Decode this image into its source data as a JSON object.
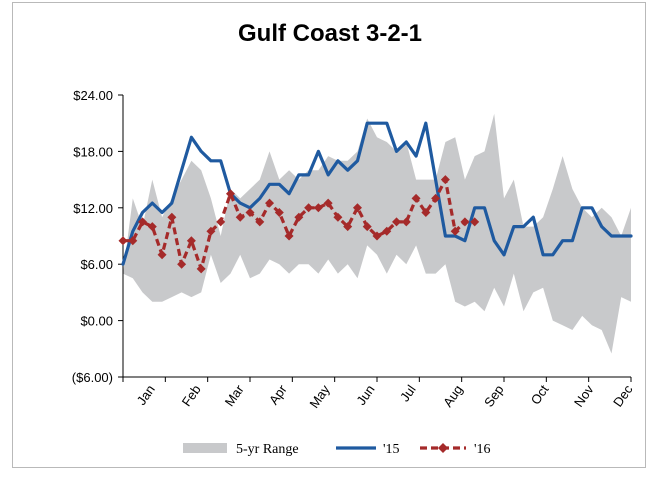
{
  "chart_data": {
    "type": "line",
    "title": "Gulf Coast 3-2-1",
    "xlabel": "",
    "ylabel": "",
    "ylim": [
      -6,
      24
    ],
    "xlim": [
      0,
      52
    ],
    "grid": false,
    "legend_position": "bottom",
    "y_ticks": [
      {
        "value": 24,
        "label": "$24.00"
      },
      {
        "value": 18,
        "label": "$18.00"
      },
      {
        "value": 12,
        "label": "$12.00"
      },
      {
        "value": 6,
        "label": "$6.00"
      },
      {
        "value": 0,
        "label": "$0.00"
      },
      {
        "value": -6,
        "label": "($6.00)"
      }
    ],
    "x_ticks": [
      {
        "value": 2.5,
        "label": "Jan"
      },
      {
        "value": 7.2,
        "label": "Feb"
      },
      {
        "value": 11.6,
        "label": "Mar"
      },
      {
        "value": 16.0,
        "label": "Apr"
      },
      {
        "value": 20.4,
        "label": "May"
      },
      {
        "value": 25.0,
        "label": "Jun"
      },
      {
        "value": 29.2,
        "label": "Jul"
      },
      {
        "value": 34.0,
        "label": "Aug"
      },
      {
        "value": 38.2,
        "label": "Sep"
      },
      {
        "value": 42.8,
        "label": "Oct"
      },
      {
        "value": 47.4,
        "label": "Nov"
      },
      {
        "value": 51.4,
        "label": "Dec"
      }
    ],
    "range": {
      "name": "5-yr Range",
      "color": "#c8c9cb",
      "x": [
        0,
        1,
        2,
        3,
        4,
        5,
        6,
        7,
        8,
        9,
        10,
        11,
        12,
        13,
        14,
        15,
        16,
        17,
        18,
        19,
        20,
        21,
        22,
        23,
        24,
        25,
        26,
        27,
        28,
        29,
        30,
        31,
        32,
        33,
        34,
        35,
        36,
        37,
        38,
        39,
        40,
        41,
        42,
        43,
        44,
        45,
        46,
        47,
        48,
        49,
        50,
        51,
        52
      ],
      "high": [
        5.0,
        13.0,
        10.0,
        15.0,
        11.0,
        13.0,
        15.0,
        17.0,
        16.0,
        13.0,
        9.0,
        14.0,
        13.0,
        14.0,
        15.0,
        18.0,
        15.0,
        16.0,
        15.0,
        16.0,
        16.0,
        17.5,
        17.0,
        17.0,
        18.0,
        21.5,
        19.5,
        19.0,
        18.0,
        19.0,
        15.0,
        15.0,
        15.0,
        19.0,
        19.5,
        15.0,
        17.5,
        18.0,
        22.0,
        13.0,
        15.0,
        10.0,
        10.0,
        11.0,
        14.0,
        17.5,
        14.0,
        12.0,
        11.0,
        12.0,
        11.0,
        9.0,
        12.0
      ],
      "low": [
        5.0,
        4.5,
        3.0,
        2.0,
        2.0,
        2.5,
        3.0,
        2.5,
        3.0,
        7.0,
        4.0,
        5.0,
        7.0,
        4.5,
        5.0,
        6.5,
        6.0,
        5.0,
        6.0,
        6.0,
        5.0,
        6.5,
        5.0,
        6.0,
        4.5,
        8.0,
        7.0,
        5.0,
        7.0,
        6.0,
        8.0,
        5.0,
        5.0,
        6.0,
        2.0,
        1.5,
        2.0,
        1.0,
        3.5,
        1.5,
        5.0,
        1.0,
        3.0,
        3.5,
        0.0,
        -0.5,
        -1.0,
        0.5,
        -0.5,
        -1.0,
        -3.5,
        2.5,
        2.0
      ]
    },
    "series": [
      {
        "name": "'15",
        "color": "#1f5aa0",
        "style": "solid",
        "x": [
          0,
          1,
          2,
          3,
          4,
          5,
          6,
          7,
          8,
          9,
          10,
          11,
          12,
          13,
          14,
          15,
          16,
          17,
          18,
          19,
          20,
          21,
          22,
          23,
          24,
          25,
          26,
          27,
          28,
          29,
          30,
          31,
          32,
          33,
          34,
          35,
          36,
          37,
          38,
          39,
          40,
          41,
          42,
          43,
          44,
          45,
          46,
          47,
          48,
          49,
          50,
          51,
          52
        ],
        "values": [
          6.0,
          9.5,
          11.5,
          12.5,
          11.5,
          12.5,
          16.0,
          19.5,
          18.0,
          17.0,
          17.0,
          13.5,
          12.5,
          12.0,
          13.0,
          14.5,
          14.5,
          13.5,
          15.5,
          15.5,
          18.0,
          15.5,
          17.0,
          16.0,
          17.0,
          21.0,
          21.0,
          21.0,
          18.0,
          19.0,
          17.5,
          21.0,
          15.0,
          9.0,
          9.0,
          8.5,
          12.0,
          12.0,
          8.5,
          7.0,
          10.0,
          10.0,
          11.0,
          7.0,
          7.0,
          8.5,
          8.5,
          12.0,
          12.0,
          10.0,
          9.0,
          9.0,
          9.0
        ]
      },
      {
        "name": "'16",
        "color": "#a52a2a",
        "style": "dashed-diamond",
        "x": [
          0,
          1,
          2,
          3,
          4,
          5,
          6,
          7,
          8,
          9,
          10,
          11,
          12,
          13,
          14,
          15,
          16,
          17,
          18,
          19,
          20,
          21,
          22,
          23,
          24,
          25,
          26,
          27,
          28,
          29,
          30,
          31,
          32,
          33,
          34,
          35,
          36
        ],
        "values": [
          8.5,
          8.5,
          10.5,
          10.0,
          7.0,
          11.0,
          6.0,
          8.5,
          5.5,
          9.5,
          10.5,
          13.5,
          11.0,
          11.5,
          10.5,
          12.5,
          11.5,
          9.0,
          11.0,
          12.0,
          12.0,
          12.5,
          11.0,
          10.0,
          12.0,
          10.0,
          9.0,
          9.5,
          10.5,
          10.5,
          13.0,
          11.5,
          13.0,
          15.0,
          9.5,
          10.5,
          10.5
        ]
      }
    ],
    "legend": [
      {
        "label": "5-yr Range",
        "kind": "area"
      },
      {
        "label": "'15",
        "kind": "line"
      },
      {
        "label": "'16",
        "kind": "dashed-diamond"
      }
    ]
  }
}
